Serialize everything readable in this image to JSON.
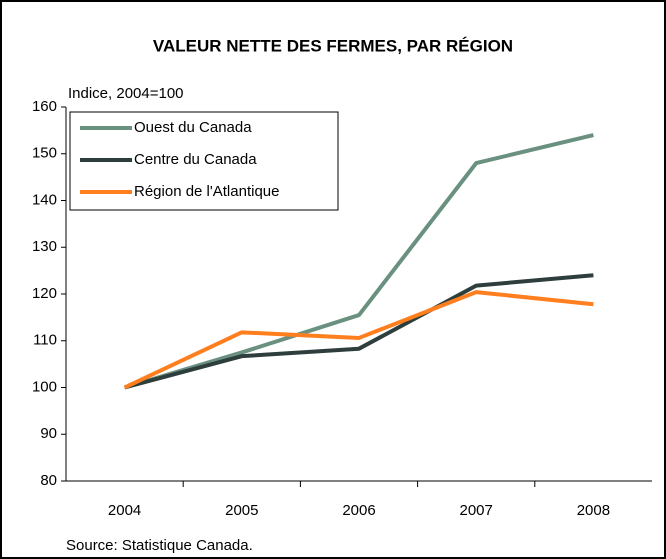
{
  "chart_data": {
    "type": "line",
    "title": "VALEUR NETTE DES FERMES, PAR RÉGION",
    "y_label": "Indice, 2004=100",
    "source": "Source: Statistique Canada.",
    "categories": [
      "2004",
      "2005",
      "2006",
      "2007",
      "2008"
    ],
    "series": [
      {
        "name": "Ouest du Canada",
        "color": "#6a9080",
        "values": [
          100,
          107.5,
          115.5,
          148,
          154
        ]
      },
      {
        "name": "Centre du Canada",
        "color": "#2d3e3c",
        "values": [
          100,
          106.7,
          108.3,
          121.8,
          124
        ]
      },
      {
        "name": "Région de l'Atlantique",
        "color": "#ff7f1f",
        "values": [
          100,
          111.8,
          110.6,
          120.4,
          117.8
        ]
      }
    ],
    "ylim": [
      80,
      160
    ],
    "yticks": [
      80,
      90,
      100,
      110,
      120,
      130,
      140,
      150,
      160
    ],
    "legend": "upper left"
  }
}
